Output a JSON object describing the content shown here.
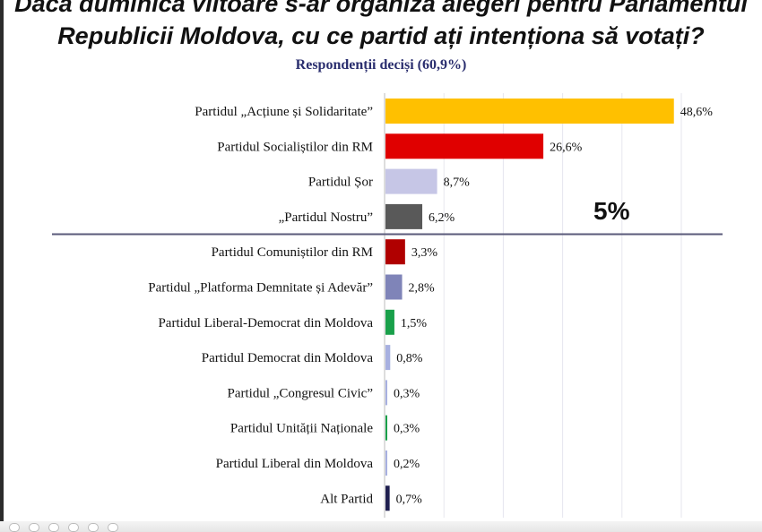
{
  "title": {
    "line1": "Dacă duminica viitoare s-ar organiza alegeri pentru Parlamentul",
    "line2": "Republicii Moldova, cu ce partid ați intenționa să votați?"
  },
  "subtitle": "Respondenții deciși (60,9%)",
  "threshold_label": "5%",
  "colors": {
    "separator": "#5a5a7a",
    "axis": "#bbbbbb",
    "gridline": "#e6e6ee",
    "label_text": "#111111"
  },
  "chart_data": {
    "type": "bar",
    "orientation": "horizontal",
    "title": "Dacă duminica viitoare s-ar organiza alegeri pentru Parlamentul Republicii Moldova, cu ce partid ați intenționa să votați?",
    "subtitle": "Respondenții deciși (60,9%)",
    "unit": "%",
    "grid": true,
    "xlim": [
      0,
      50
    ],
    "separator_after_index": 3,
    "categories": [
      "Partidul „Acțiune și Solidaritate”",
      "Partidul Socialiștilor din RM",
      "Partidul Șor",
      "„Partidul Nostru”",
      "Partidul Comuniștilor din RM",
      "Partidul „Platforma Demnitate și Adevăr”",
      "Partidul Liberal-Democrat din Moldova",
      "Partidul Democrat din Moldova",
      "Partidul „Congresul Civic”",
      "Partidul Unității Naționale",
      "Partidul Liberal din Moldova",
      "Alt Partid"
    ],
    "values": [
      48.6,
      26.6,
      8.7,
      6.2,
      3.3,
      2.8,
      1.5,
      0.8,
      0.3,
      0.3,
      0.2,
      0.7
    ],
    "value_labels": [
      "48,6%",
      "26,6%",
      "8,7%",
      "6,2%",
      "3,3%",
      "2,8%",
      "1,5%",
      "0,8%",
      "0,3%",
      "0,3%",
      "0,2%",
      "0,7%"
    ],
    "bar_colors": [
      "#ffc000",
      "#e00000",
      "#c6c6e6",
      "#595959",
      "#b00000",
      "#7f84b8",
      "#19a04a",
      "#a7b0e0",
      "#a7b0e0",
      "#19a04a",
      "#a7b0e0",
      "#1f1f4f"
    ]
  }
}
